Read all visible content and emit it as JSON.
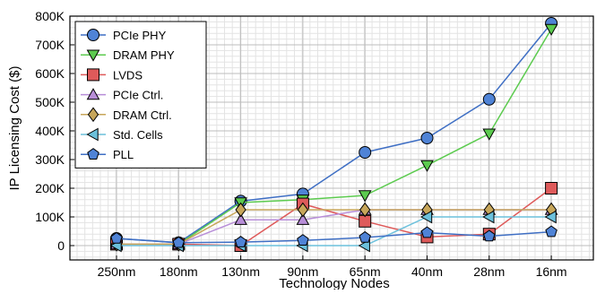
{
  "chart_data": {
    "type": "line",
    "xlabel": "Technology Nodes",
    "ylabel": "IP Licensing Cost ($)",
    "categories": [
      "250nm",
      "180nm",
      "130nm",
      "90nm",
      "65nm",
      "40nm",
      "28nm",
      "16nm"
    ],
    "ylim": [
      -50000,
      800000
    ],
    "yticks": [
      0,
      100000,
      200000,
      300000,
      400000,
      500000,
      600000,
      700000,
      800000
    ],
    "ytick_labels": [
      "0",
      "100K",
      "200K",
      "300K",
      "400K",
      "500K",
      "600K",
      "700K",
      "800K"
    ],
    "grid": true,
    "legend_position": "top-left",
    "series": [
      {
        "name": "PCIe PHY",
        "marker": "circle",
        "color": "#4f83d6",
        "line_color": "#3f6fc4",
        "values": [
          25000,
          10000,
          155000,
          180000,
          325000,
          375000,
          510000,
          775000
        ]
      },
      {
        "name": "DRAM PHY",
        "marker": "triangle-down",
        "color": "#5ccb4f",
        "line_color": "#5ccb4f",
        "values": [
          5000,
          5000,
          150000,
          160000,
          175000,
          280000,
          390000,
          755000
        ]
      },
      {
        "name": "LVDS",
        "marker": "square",
        "color": "#de5a5a",
        "line_color": "#de5a5a",
        "values": [
          5000,
          5000,
          0,
          145000,
          85000,
          30000,
          40000,
          200000
        ]
      },
      {
        "name": "PCIe Ctrl.",
        "marker": "triangle-up",
        "color": "#b88ed8",
        "line_color": "#b88ed8",
        "values": [
          5000,
          5000,
          90000,
          90000,
          125000,
          125000,
          125000,
          125000
        ]
      },
      {
        "name": "DRAM Ctrl.",
        "marker": "diamond",
        "color": "#c7a65a",
        "line_color": "#c7a65a",
        "values": [
          5000,
          5000,
          125000,
          125000,
          125000,
          125000,
          125000,
          125000
        ]
      },
      {
        "name": "Std. Cells",
        "marker": "triangle-left",
        "color": "#6cc1dc",
        "line_color": "#6cc1dc",
        "values": [
          0,
          0,
          0,
          0,
          0,
          100000,
          100000,
          100000
        ]
      },
      {
        "name": "PLL",
        "marker": "pentagon",
        "color": "#4f83d6",
        "line_color": "#3f6fc4",
        "values": [
          25000,
          10000,
          12000,
          18000,
          28000,
          45000,
          33000,
          48000
        ]
      }
    ]
  }
}
